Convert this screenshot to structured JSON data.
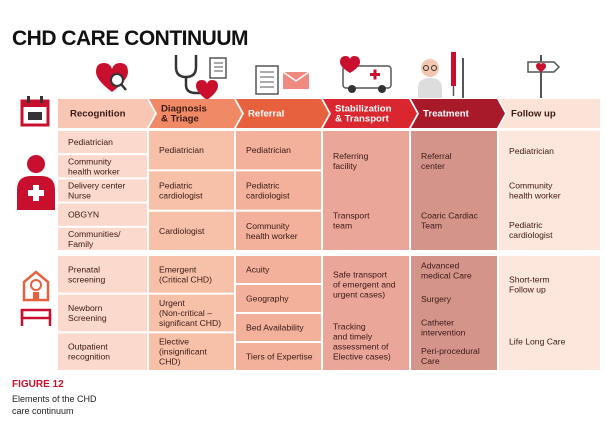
{
  "title": "CHD CARE CONTINUUM",
  "stages": [
    [
      "Recognition"
    ],
    [
      "Diagnosis",
      "& Triage"
    ],
    [
      "Referral"
    ],
    [
      "Stabilization",
      "& Transport"
    ],
    [
      "Treatment"
    ],
    [
      "Follow up"
    ]
  ],
  "people": [
    [
      [
        "Pediatrician"
      ],
      [
        "Community",
        "health worker"
      ],
      [
        "Delivery center",
        "Nurse"
      ],
      [
        "OBGYN"
      ],
      [
        "Communities/",
        "Family"
      ]
    ],
    [
      [
        "Pediatrician"
      ],
      [
        "Pediatric",
        "cardiologist"
      ],
      [
        "Cardiologist"
      ]
    ],
    [
      [
        "Pediatrician"
      ],
      [
        "Pediatric",
        "cardiologist"
      ],
      [
        "Community",
        "health worker"
      ]
    ],
    [
      [
        "Referring",
        "facility"
      ],
      [
        "Transport",
        "team"
      ]
    ],
    [
      [
        "Referral",
        "center"
      ],
      [
        "Coaric Cardiac",
        "Team"
      ]
    ],
    [
      [
        "Pediatrician"
      ],
      [
        "Community",
        "health worker"
      ],
      [
        "Pediatric",
        "cardiologist"
      ]
    ]
  ],
  "facilities": [
    [
      [
        "Prenatal",
        "screening"
      ],
      [
        "Newborn",
        "Screening"
      ],
      [
        "Outpatient",
        "recognition"
      ]
    ],
    [
      [
        "Emergent",
        "(Critical CHD)"
      ],
      [
        "Urgent",
        "(Non-critical –",
        "significant CHD)"
      ],
      [
        "Elective",
        "(insignificant",
        "CHD)"
      ]
    ],
    [
      [
        "Acuity"
      ],
      [
        "Geography"
      ],
      [
        "Bed Availability"
      ],
      [
        "Tiers of Expertise"
      ]
    ],
    [
      [
        "Safe transport",
        "of emergent and",
        "urgent cases)"
      ],
      [
        "Tracking",
        "and timely",
        "assessment of",
        "Elective cases)"
      ]
    ],
    [
      [
        "Advanced",
        "medical Care"
      ],
      [
        "Surgery"
      ],
      [
        "Catheter",
        "intervention"
      ],
      [
        "Peri-procedural",
        "Care"
      ]
    ],
    [
      [
        "Short-term",
        "Follow up"
      ],
      [
        "Life Long Care"
      ]
    ]
  ],
  "caption": {
    "figure": "FIGURE 12",
    "text": [
      "Elements of the CHD",
      "care continuum"
    ]
  }
}
